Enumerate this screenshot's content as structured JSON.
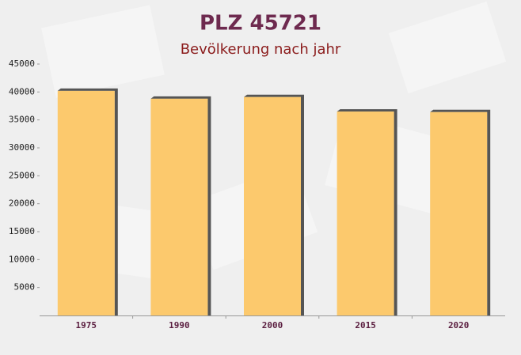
{
  "chart_data": {
    "type": "bar",
    "title": "PLZ 45721",
    "subtitle": "Bevölkerung nach jahr",
    "categories": [
      "1975",
      "1990",
      "2000",
      "2015",
      "2020"
    ],
    "values": [
      40200,
      38800,
      39100,
      36500,
      36400
    ],
    "color": "#fdc45e",
    "ylim": [
      0,
      45000
    ],
    "yticks": [
      5000,
      10000,
      15000,
      20000,
      25000,
      30000,
      35000,
      40000,
      45000
    ],
    "grid": false
  }
}
